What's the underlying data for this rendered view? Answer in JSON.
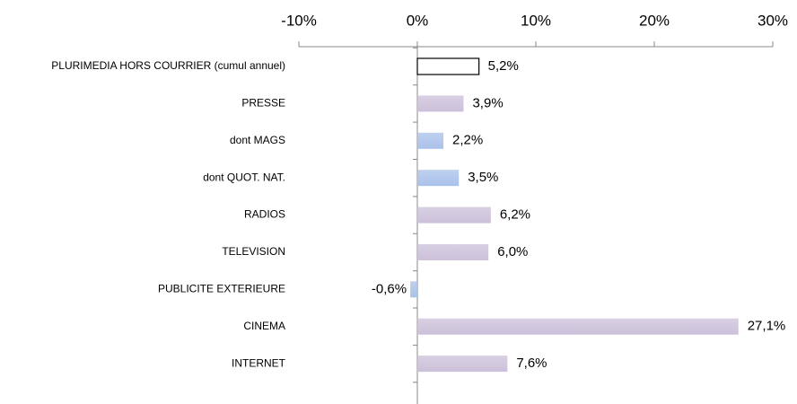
{
  "chart_data": {
    "type": "barh",
    "categories": [
      "PLURIMEDIA HORS COURRIER (cumul annuel)",
      "PRESSE",
      "dont MAGS",
      "dont QUOT. NAT.",
      "RADIOS",
      "TELEVISION",
      "PUBLICITE EXTERIEURE",
      "CINEMA",
      "INTERNET"
    ],
    "values": [
      5.2,
      3.9,
      2.2,
      3.5,
      6.2,
      6.0,
      -0.6,
      27.1,
      7.6
    ],
    "value_labels": [
      "5,2%",
      "3,9%",
      "2,2%",
      "3,5%",
      "6,2%",
      "6,0%",
      "-0,6%",
      "27,1%",
      "7,6%"
    ],
    "colors": [
      "#ffffff",
      "#ccc0da",
      "#a9c1ea",
      "#a9c1ea",
      "#ccc0da",
      "#ccc0da",
      "#a9c1ea",
      "#ccc0da",
      "#ccc0da"
    ],
    "edgecolors": [
      "#000000",
      "none",
      "none",
      "none",
      "none",
      "none",
      "none",
      "none",
      "none"
    ],
    "xlim": [
      -10,
      30
    ],
    "xticks": [
      {
        "value": -10,
        "label": "-10%"
      },
      {
        "value": 0,
        "label": "0%"
      },
      {
        "value": 10,
        "label": "10%"
      },
      {
        "value": 20,
        "label": "20%"
      },
      {
        "value": 30,
        "label": "30%"
      }
    ],
    "xaxis_position": "top"
  }
}
